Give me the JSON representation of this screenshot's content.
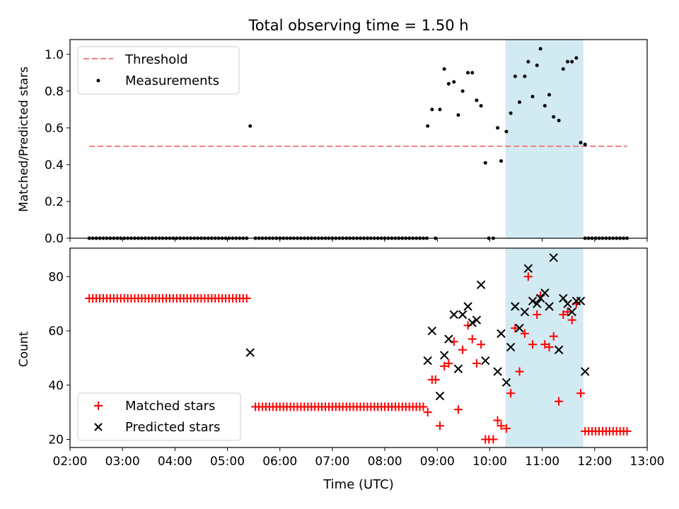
{
  "title": "Total observing time = 1.50 h",
  "chart_data": [
    {
      "type": "scatter",
      "ylabel": "Matched/Predicted stars",
      "xlim": [
        "02:00",
        "13:00"
      ],
      "ylim": [
        0,
        1.08
      ],
      "yticks": [
        "0.0",
        "0.2",
        "0.4",
        "0.6",
        "0.8",
        "1.0"
      ],
      "shaded_span": [
        "10:18",
        "11:47"
      ],
      "shade_color": "#add8e6",
      "legend_position": "upper left",
      "legend": {
        "threshold": "Threshold",
        "measurements": "Measurements"
      },
      "threshold": {
        "value": 0.5,
        "x_range": [
          "02:22",
          "12:37"
        ],
        "color": "#f08080"
      },
      "measurements_color": "#000000",
      "zero_runs": [
        {
          "start": "02:22",
          "end": "05:25",
          "step_min": 4
        },
        {
          "start": "05:32",
          "end": "08:49",
          "step_min": 4
        },
        {
          "start": "11:49",
          "end": "12:37",
          "step_min": 4
        }
      ],
      "points": [
        {
          "x": "05:26",
          "y": 0.61
        },
        {
          "x": "08:49",
          "y": 0.61
        },
        {
          "x": "08:54",
          "y": 0.7
        },
        {
          "x": "08:58",
          "y": 0.0
        },
        {
          "x": "09:03",
          "y": 0.7
        },
        {
          "x": "09:08",
          "y": 0.92
        },
        {
          "x": "09:13",
          "y": 0.84
        },
        {
          "x": "09:19",
          "y": 0.85
        },
        {
          "x": "09:24",
          "y": 0.67
        },
        {
          "x": "09:29",
          "y": 0.8
        },
        {
          "x": "09:35",
          "y": 0.9
        },
        {
          "x": "09:40",
          "y": 0.9
        },
        {
          "x": "09:45",
          "y": 0.75
        },
        {
          "x": "09:50",
          "y": 0.72
        },
        {
          "x": "09:55",
          "y": 0.41
        },
        {
          "x": "09:59",
          "y": 0.0
        },
        {
          "x": "10:04",
          "y": 0.0
        },
        {
          "x": "10:09",
          "y": 0.6
        },
        {
          "x": "10:13",
          "y": 0.42
        },
        {
          "x": "10:19",
          "y": 0.58
        },
        {
          "x": "10:24",
          "y": 0.68
        },
        {
          "x": "10:29",
          "y": 0.88
        },
        {
          "x": "10:34",
          "y": 0.74
        },
        {
          "x": "10:40",
          "y": 0.88
        },
        {
          "x": "10:44",
          "y": 0.96
        },
        {
          "x": "10:49",
          "y": 0.77
        },
        {
          "x": "10:54",
          "y": 0.94
        },
        {
          "x": "10:58",
          "y": 1.03
        },
        {
          "x": "11:03",
          "y": 0.72
        },
        {
          "x": "11:08",
          "y": 0.78
        },
        {
          "x": "11:13",
          "y": 0.66
        },
        {
          "x": "11:19",
          "y": 0.64
        },
        {
          "x": "11:24",
          "y": 0.92
        },
        {
          "x": "11:29",
          "y": 0.96
        },
        {
          "x": "11:34",
          "y": 0.96
        },
        {
          "x": "11:39",
          "y": 0.98
        },
        {
          "x": "11:44",
          "y": 0.52
        },
        {
          "x": "11:49",
          "y": 0.51
        }
      ]
    },
    {
      "type": "scatter",
      "xlabel": "Time (UTC)",
      "ylabel": "Count",
      "xlim": [
        "02:00",
        "13:00"
      ],
      "ylim": [
        17,
        90.5
      ],
      "yticks": [
        20,
        40,
        60,
        80
      ],
      "xticks": [
        "02:00",
        "03:00",
        "04:00",
        "05:00",
        "06:00",
        "07:00",
        "08:00",
        "09:00",
        "10:00",
        "11:00",
        "12:00",
        "13:00"
      ],
      "shaded_span": [
        "10:18",
        "11:47"
      ],
      "legend_position": "lower left",
      "legend": {
        "matched": "Matched stars",
        "predicted": "Predicted stars"
      },
      "matched_color": "#ff0000",
      "predicted_color": "#000000",
      "matched_runs": [
        {
          "start": "02:22",
          "end": "05:25",
          "step_min": 4,
          "y": 72
        },
        {
          "start": "05:32",
          "end": "08:45",
          "step_min": 4,
          "y": 32
        },
        {
          "start": "11:49",
          "end": "12:37",
          "step_min": 4,
          "y": 23
        }
      ],
      "matched_points": [
        {
          "x": "08:49",
          "y": 30
        },
        {
          "x": "08:54",
          "y": 42
        },
        {
          "x": "08:58",
          "y": 42
        },
        {
          "x": "09:03",
          "y": 25
        },
        {
          "x": "09:08",
          "y": 47
        },
        {
          "x": "09:13",
          "y": 48
        },
        {
          "x": "09:19",
          "y": 56
        },
        {
          "x": "09:24",
          "y": 31
        },
        {
          "x": "09:29",
          "y": 53
        },
        {
          "x": "09:35",
          "y": 62
        },
        {
          "x": "09:40",
          "y": 57
        },
        {
          "x": "09:45",
          "y": 48
        },
        {
          "x": "09:50",
          "y": 55
        },
        {
          "x": "09:55",
          "y": 20
        },
        {
          "x": "09:59",
          "y": 20
        },
        {
          "x": "10:04",
          "y": 20
        },
        {
          "x": "10:09",
          "y": 27
        },
        {
          "x": "10:13",
          "y": 25
        },
        {
          "x": "10:19",
          "y": 24
        },
        {
          "x": "10:24",
          "y": 37
        },
        {
          "x": "10:29",
          "y": 61
        },
        {
          "x": "10:34",
          "y": 45
        },
        {
          "x": "10:40",
          "y": 59
        },
        {
          "x": "10:44",
          "y": 80
        },
        {
          "x": "10:49",
          "y": 55
        },
        {
          "x": "10:54",
          "y": 66
        },
        {
          "x": "10:58",
          "y": 73
        },
        {
          "x": "11:03",
          "y": 55
        },
        {
          "x": "11:08",
          "y": 54
        },
        {
          "x": "11:13",
          "y": 58
        },
        {
          "x": "11:19",
          "y": 34
        },
        {
          "x": "11:24",
          "y": 66
        },
        {
          "x": "11:29",
          "y": 67
        },
        {
          "x": "11:34",
          "y": 64
        },
        {
          "x": "11:39",
          "y": 70
        },
        {
          "x": "11:44",
          "y": 37
        }
      ],
      "predicted_points": [
        {
          "x": "05:26",
          "y": 52
        },
        {
          "x": "08:49",
          "y": 49
        },
        {
          "x": "08:54",
          "y": 60
        },
        {
          "x": "09:03",
          "y": 36
        },
        {
          "x": "09:08",
          "y": 51
        },
        {
          "x": "09:13",
          "y": 57
        },
        {
          "x": "09:19",
          "y": 66
        },
        {
          "x": "09:24",
          "y": 46
        },
        {
          "x": "09:29",
          "y": 66
        },
        {
          "x": "09:35",
          "y": 69
        },
        {
          "x": "09:40",
          "y": 63
        },
        {
          "x": "09:45",
          "y": 64
        },
        {
          "x": "09:50",
          "y": 77
        },
        {
          "x": "09:55",
          "y": 49
        },
        {
          "x": "10:09",
          "y": 45
        },
        {
          "x": "10:13",
          "y": 59
        },
        {
          "x": "10:19",
          "y": 41
        },
        {
          "x": "10:24",
          "y": 54
        },
        {
          "x": "10:29",
          "y": 69
        },
        {
          "x": "10:34",
          "y": 61
        },
        {
          "x": "10:40",
          "y": 67
        },
        {
          "x": "10:44",
          "y": 83
        },
        {
          "x": "10:49",
          "y": 71
        },
        {
          "x": "10:54",
          "y": 70
        },
        {
          "x": "10:58",
          "y": 72
        },
        {
          "x": "11:03",
          "y": 74
        },
        {
          "x": "11:08",
          "y": 69
        },
        {
          "x": "11:13",
          "y": 87
        },
        {
          "x": "11:19",
          "y": 53
        },
        {
          "x": "11:24",
          "y": 72
        },
        {
          "x": "11:29",
          "y": 70
        },
        {
          "x": "11:34",
          "y": 67
        },
        {
          "x": "11:39",
          "y": 71
        },
        {
          "x": "11:44",
          "y": 71
        },
        {
          "x": "11:49",
          "y": 45
        }
      ]
    }
  ]
}
